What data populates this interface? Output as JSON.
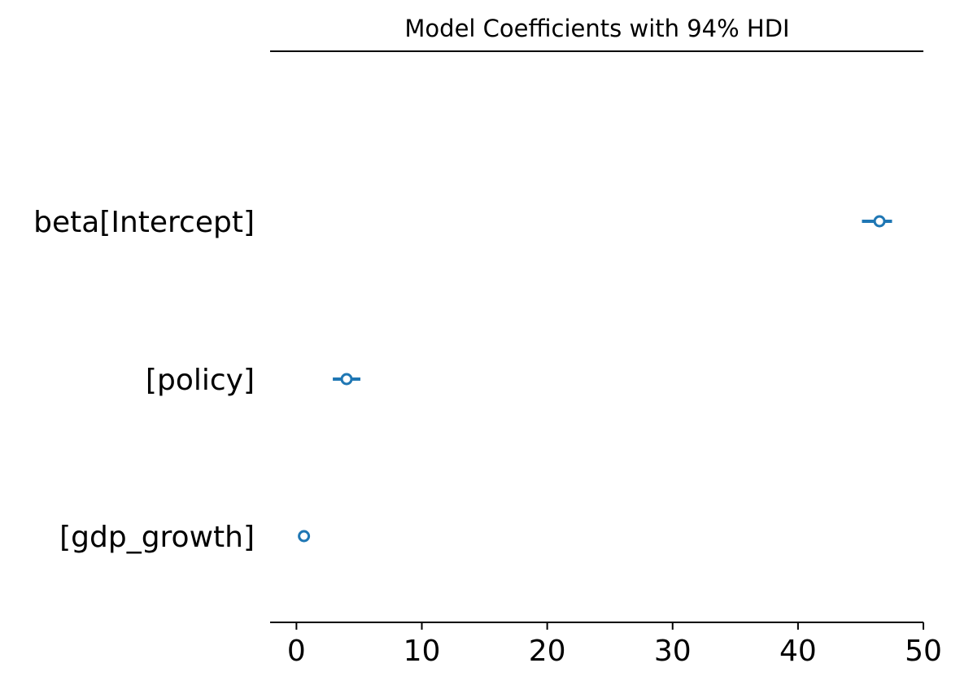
{
  "chart_data": {
    "type": "forest",
    "title": "Model Coefficients with 94% HDI",
    "xlabel": "",
    "ylabel": "",
    "xlim": [
      -2.1,
      50
    ],
    "xticks": [
      0,
      10,
      20,
      30,
      40,
      50
    ],
    "grid": false,
    "color": "#1f77b4",
    "categories": [
      "beta[Intercept]",
      "[policy]",
      "[gdp_growth]"
    ],
    "series": [
      {
        "values": [
          46.5,
          4.0,
          0.6
        ],
        "hdi_low": [
          45.1,
          2.9,
          0.4
        ],
        "hdi_high": [
          47.5,
          5.1,
          0.8
        ]
      }
    ]
  }
}
